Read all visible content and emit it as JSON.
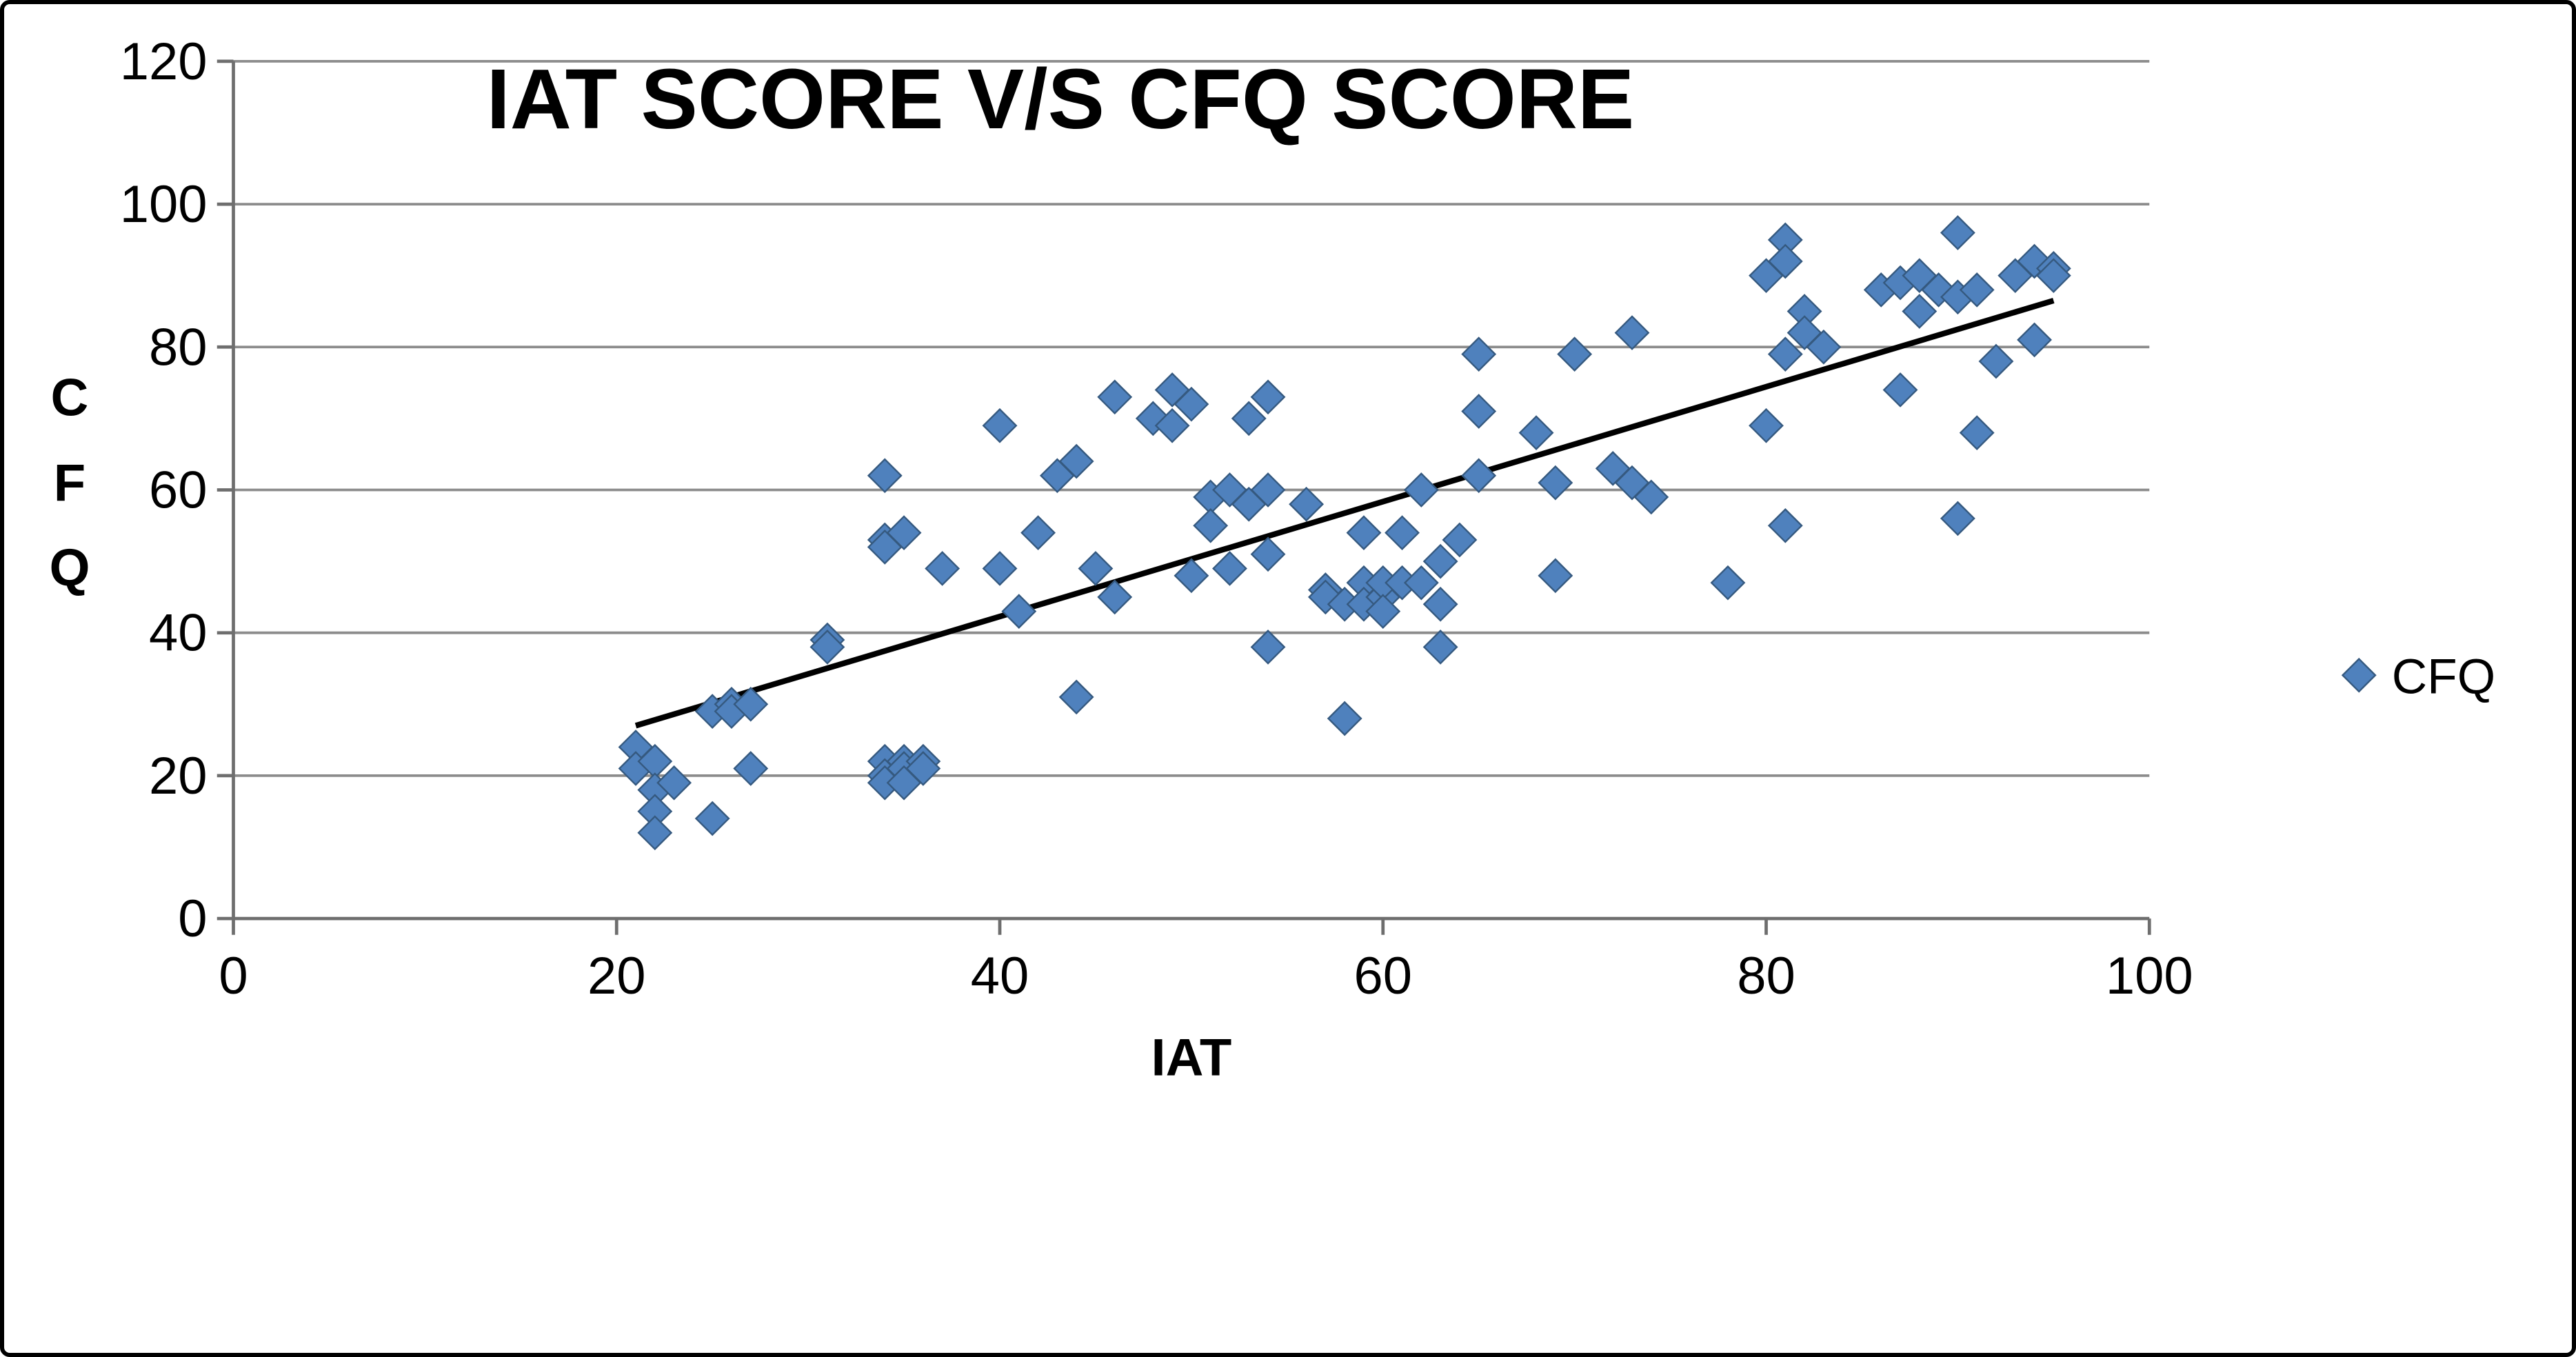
{
  "chart_data": {
    "type": "scatter",
    "title": "IAT SCORE V/S  CFQ SCORE",
    "xlabel": "IAT",
    "ylabel": "CFQ",
    "xlim": [
      0,
      100
    ],
    "ylim": [
      0,
      120
    ],
    "xticks": [
      0,
      20,
      40,
      60,
      80,
      100
    ],
    "yticks": [
      0,
      20,
      40,
      60,
      80,
      100,
      120
    ],
    "grid": "horizontal",
    "marker_color": "#4F81BD",
    "trendline_color": "#000000",
    "legend": {
      "position": "right",
      "entries": [
        {
          "label": "CFQ",
          "marker": "diamond"
        }
      ]
    },
    "trendline": {
      "points": [
        [
          21,
          27
        ],
        [
          95,
          86.5
        ]
      ]
    },
    "series": [
      {
        "name": "CFQ",
        "points": [
          [
            21,
            24
          ],
          [
            21,
            21
          ],
          [
            22,
            22
          ],
          [
            22,
            18
          ],
          [
            22,
            15
          ],
          [
            22,
            12
          ],
          [
            23,
            19
          ],
          [
            25,
            29
          ],
          [
            25,
            14
          ],
          [
            26,
            30
          ],
          [
            26,
            29
          ],
          [
            27,
            30
          ],
          [
            27,
            21
          ],
          [
            31,
            39
          ],
          [
            31,
            38
          ],
          [
            34,
            62
          ],
          [
            34,
            53
          ],
          [
            34,
            52
          ],
          [
            35,
            54
          ],
          [
            34,
            22
          ],
          [
            34,
            20
          ],
          [
            34,
            19
          ],
          [
            35,
            22
          ],
          [
            35,
            21
          ],
          [
            35,
            19
          ],
          [
            36,
            22
          ],
          [
            36,
            21
          ],
          [
            37,
            49
          ],
          [
            40,
            69
          ],
          [
            40,
            49
          ],
          [
            41,
            43
          ],
          [
            42,
            54
          ],
          [
            43,
            62
          ],
          [
            44,
            31
          ],
          [
            44,
            64
          ],
          [
            45,
            49
          ],
          [
            46,
            73
          ],
          [
            46,
            45
          ],
          [
            48,
            70
          ],
          [
            49,
            74
          ],
          [
            49,
            69
          ],
          [
            50,
            48
          ],
          [
            50,
            72
          ],
          [
            51,
            59
          ],
          [
            51,
            55
          ],
          [
            52,
            60
          ],
          [
            52,
            49
          ],
          [
            53,
            70
          ],
          [
            53,
            58
          ],
          [
            54,
            73
          ],
          [
            54,
            60
          ],
          [
            54,
            51
          ],
          [
            54,
            38
          ],
          [
            56,
            58
          ],
          [
            57,
            46
          ],
          [
            57,
            45
          ],
          [
            58,
            44
          ],
          [
            58,
            28
          ],
          [
            59,
            54
          ],
          [
            59,
            47
          ],
          [
            59,
            44
          ],
          [
            60,
            45
          ],
          [
            60,
            47
          ],
          [
            60,
            43
          ],
          [
            61,
            54
          ],
          [
            61,
            47
          ],
          [
            62,
            60
          ],
          [
            62,
            47
          ],
          [
            63,
            38
          ],
          [
            63,
            44
          ],
          [
            63,
            50
          ],
          [
            64,
            53
          ],
          [
            65,
            79
          ],
          [
            65,
            71
          ],
          [
            65,
            62
          ],
          [
            68,
            68
          ],
          [
            69,
            61
          ],
          [
            69,
            48
          ],
          [
            70,
            79
          ],
          [
            72,
            63
          ],
          [
            73,
            82
          ],
          [
            73,
            61
          ],
          [
            74,
            59
          ],
          [
            78,
            47
          ],
          [
            80,
            90
          ],
          [
            80,
            69
          ],
          [
            81,
            95
          ],
          [
            81,
            92
          ],
          [
            81,
            79
          ],
          [
            81,
            55
          ],
          [
            82,
            85
          ],
          [
            82,
            82
          ],
          [
            83,
            80
          ],
          [
            86,
            88
          ],
          [
            87,
            89
          ],
          [
            87,
            74
          ],
          [
            88,
            90
          ],
          [
            88,
            85
          ],
          [
            89,
            88
          ],
          [
            90,
            96
          ],
          [
            90,
            87
          ],
          [
            90,
            56
          ],
          [
            91,
            68
          ],
          [
            91,
            88
          ],
          [
            92,
            78
          ],
          [
            93,
            90
          ],
          [
            94,
            92
          ],
          [
            94,
            81
          ],
          [
            95,
            91
          ],
          [
            95,
            90
          ]
        ]
      }
    ]
  }
}
